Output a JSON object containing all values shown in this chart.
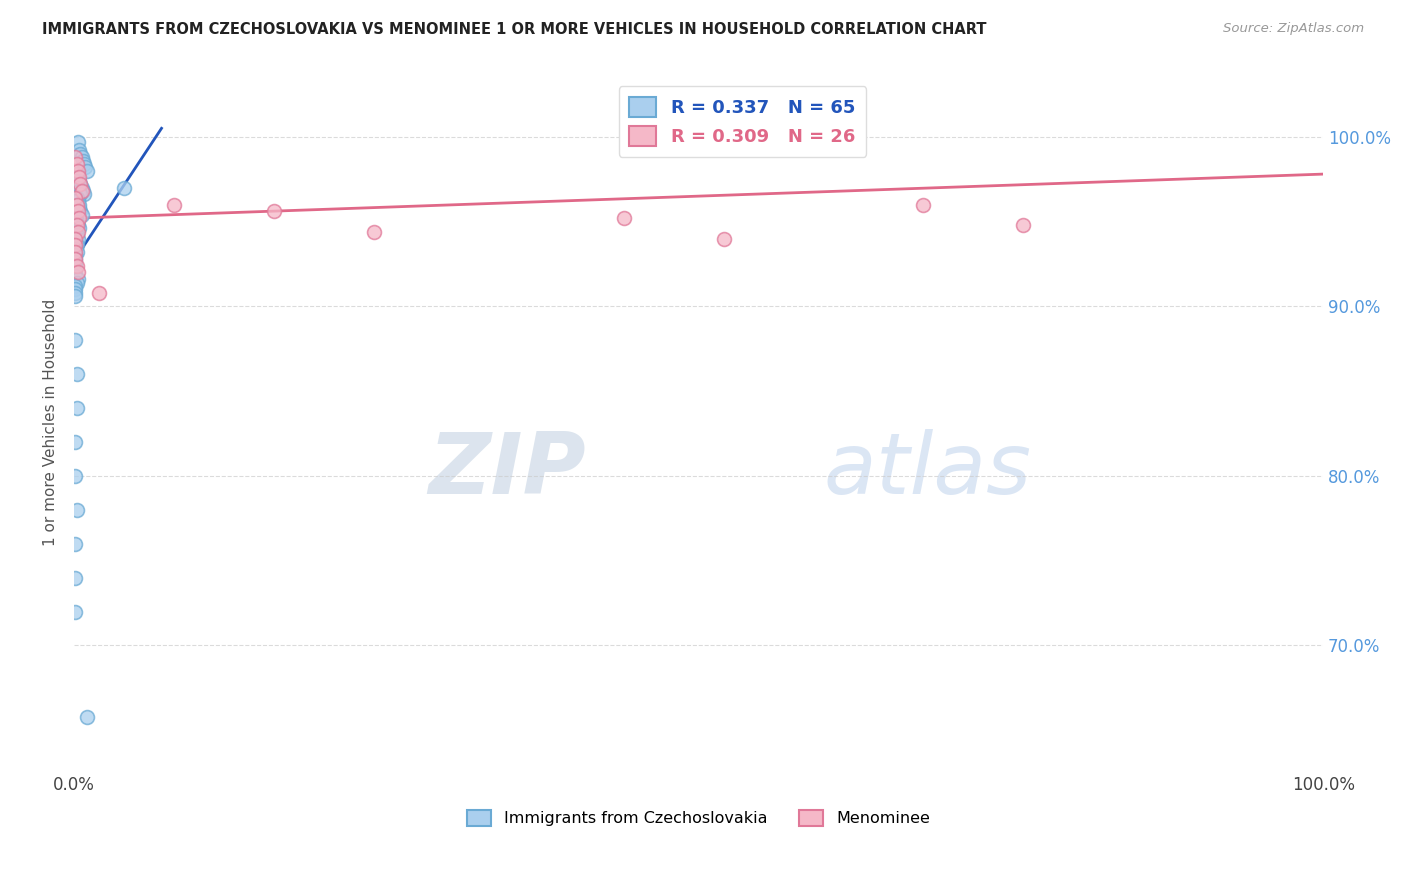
{
  "title": "IMMIGRANTS FROM CZECHOSLOVAKIA VS MENOMINEE 1 OR MORE VEHICLES IN HOUSEHOLD CORRELATION CHART",
  "source": "Source: ZipAtlas.com",
  "ylabel": "1 or more Vehicles in Household",
  "xmin": 0.0,
  "xmax": 1.0,
  "ymin": 0.628,
  "ymax": 1.035,
  "yticks": [
    0.7,
    0.8,
    0.9,
    1.0
  ],
  "ytick_labels": [
    "70.0%",
    "80.0%",
    "90.0%",
    "100.0%"
  ],
  "xtick_labels": [
    "0.0%",
    "100.0%"
  ],
  "blue_color": "#aacfee",
  "blue_edge": "#6aaad4",
  "pink_color": "#f5b8c8",
  "pink_edge": "#e07898",
  "blue_line_color": "#2255bb",
  "pink_line_color": "#e06888",
  "R_blue": 0.337,
  "N_blue": 65,
  "R_pink": 0.309,
  "N_pink": 26,
  "blue_scatter_x": [
    0.003,
    0.004,
    0.005,
    0.006,
    0.007,
    0.008,
    0.009,
    0.01,
    0.002,
    0.003,
    0.004,
    0.005,
    0.006,
    0.007,
    0.008,
    0.001,
    0.002,
    0.003,
    0.004,
    0.005,
    0.006,
    0.001,
    0.002,
    0.003,
    0.004,
    0.005,
    0.001,
    0.002,
    0.003,
    0.004,
    0.002,
    0.003,
    0.004,
    0.001,
    0.002,
    0.003,
    0.001,
    0.002,
    0.001,
    0.002,
    0.001,
    0.002,
    0.001,
    0.001,
    0.001,
    0.001,
    0.001,
    0.001,
    0.04,
    0.003,
    0.002,
    0.001,
    0.001,
    0.001,
    0.001,
    0.001,
    0.002,
    0.002,
    0.001,
    0.001,
    0.002,
    0.001,
    0.001,
    0.001,
    0.01
  ],
  "blue_scatter_y": [
    0.997,
    0.992,
    0.99,
    0.988,
    0.986,
    0.984,
    0.982,
    0.98,
    0.978,
    0.976,
    0.974,
    0.972,
    0.97,
    0.968,
    0.966,
    0.964,
    0.962,
    0.96,
    0.958,
    0.956,
    0.954,
    0.974,
    0.972,
    0.97,
    0.968,
    0.966,
    0.952,
    0.95,
    0.948,
    0.946,
    0.964,
    0.962,
    0.96,
    0.944,
    0.942,
    0.94,
    0.962,
    0.96,
    0.938,
    0.936,
    0.934,
    0.932,
    0.93,
    0.928,
    0.926,
    0.924,
    0.92,
    0.918,
    0.97,
    0.916,
    0.914,
    0.912,
    0.91,
    0.908,
    0.906,
    0.88,
    0.86,
    0.84,
    0.82,
    0.8,
    0.78,
    0.76,
    0.74,
    0.72,
    0.658
  ],
  "pink_scatter_x": [
    0.001,
    0.002,
    0.003,
    0.004,
    0.005,
    0.006,
    0.001,
    0.002,
    0.003,
    0.004,
    0.002,
    0.003,
    0.02,
    0.08,
    0.16,
    0.24,
    0.44,
    0.52,
    0.68,
    0.76,
    0.001,
    0.001,
    0.001,
    0.001,
    0.002,
    0.003
  ],
  "pink_scatter_y": [
    0.988,
    0.984,
    0.98,
    0.976,
    0.972,
    0.968,
    0.964,
    0.96,
    0.956,
    0.952,
    0.948,
    0.944,
    0.908,
    0.96,
    0.956,
    0.944,
    0.952,
    0.94,
    0.96,
    0.948,
    0.94,
    0.936,
    0.932,
    0.928,
    0.924,
    0.92
  ],
  "blue_line_x": [
    0.0,
    0.07
  ],
  "blue_line_y": [
    0.927,
    1.005
  ],
  "pink_line_x": [
    0.0,
    1.0
  ],
  "pink_line_y": [
    0.952,
    0.978
  ],
  "watermark_zip": "ZIP",
  "watermark_atlas": "atlas",
  "background_color": "#ffffff",
  "grid_color": "#cccccc",
  "title_color": "#222222",
  "axis_label_color": "#555555",
  "tick_color_right": "#5599dd",
  "marker_size": 10
}
